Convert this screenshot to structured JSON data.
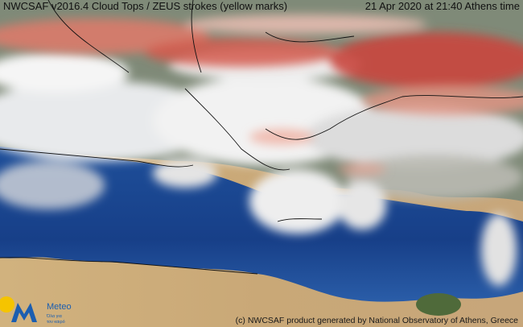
{
  "header": {
    "title": "NWCSAF v2016.4 Cloud Tops / ZEUS strokes (yellow marks)",
    "timestamp": "21 Apr 2020 at 21:40 Athens time"
  },
  "logo": {
    "name": "Meteo",
    "tagline_lines": [
      "Όλα για",
      "τον καιρό"
    ]
  },
  "footer": {
    "credit": "(c) NWCSAF product generated by National Observatory of Athens, Greece"
  }
}
